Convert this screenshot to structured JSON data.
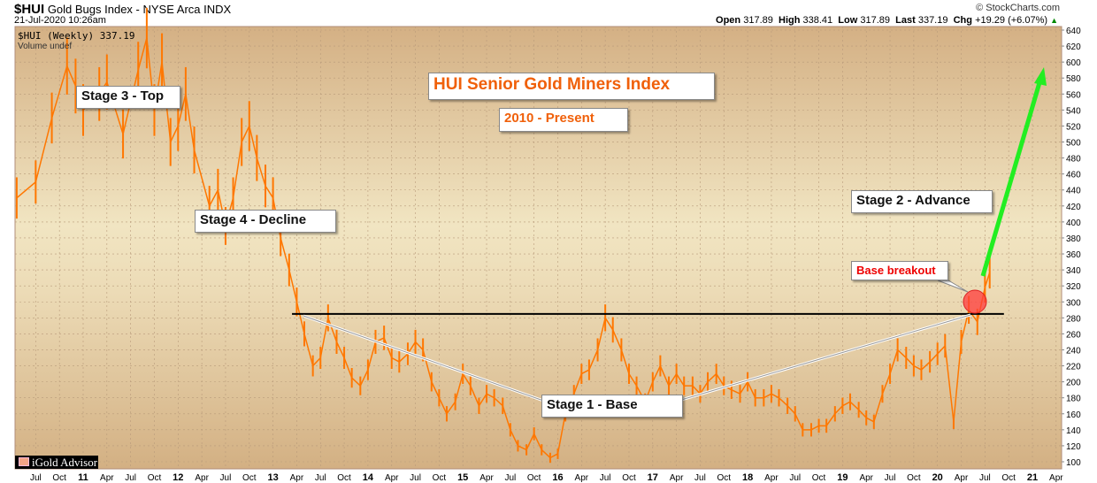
{
  "header": {
    "symbol": "$HUI",
    "name": "Gold Bugs Index - NYSE Arca",
    "exchange": "INDX",
    "datetime": "21-Jul-2020 10:26am",
    "brand": "© StockCharts.com",
    "open_label": "Open",
    "open": "317.89",
    "high_label": "High",
    "high": "338.41",
    "low_label": "Low",
    "low": "317.89",
    "last_label": "Last",
    "last": "337.19",
    "chg_label": "Chg",
    "chg": "+19.29 (+6.07%)"
  },
  "legend": {
    "series": "$HUI (Weekly) 337.19",
    "volume": "Volume undef"
  },
  "annotations": {
    "title": "HUI Senior Gold Miners Index",
    "subtitle": "2010 - Present",
    "stage3": "Stage 3 - Top",
    "stage4": "Stage 4 - Decline",
    "stage1": "Stage 1 - Base",
    "stage2": "Stage 2 - Advance",
    "breakout": "Base breakout",
    "logo": "iGold Advisor"
  },
  "colors": {
    "price": "#ff7700",
    "resistance": "#000000",
    "arrow": "#22ee22",
    "circle": "#ff3b3b",
    "accent": "#f0600a"
  },
  "chart_data": {
    "type": "bar",
    "title": "$HUI (Weekly)",
    "ylim": [
      100,
      640
    ],
    "yticks": [
      100,
      120,
      140,
      160,
      180,
      200,
      220,
      240,
      260,
      280,
      300,
      320,
      340,
      360,
      380,
      400,
      420,
      440,
      460,
      480,
      500,
      520,
      540,
      560,
      580,
      600,
      620,
      640
    ],
    "xticks": [
      {
        "t": 2010.5,
        "label": "Jul"
      },
      {
        "t": 2010.75,
        "label": "Oct"
      },
      {
        "t": 2011,
        "label": "11",
        "major": true
      },
      {
        "t": 2011.25,
        "label": "Apr"
      },
      {
        "t": 2011.5,
        "label": "Jul"
      },
      {
        "t": 2011.75,
        "label": "Oct"
      },
      {
        "t": 2012,
        "label": "12",
        "major": true
      },
      {
        "t": 2012.25,
        "label": "Apr"
      },
      {
        "t": 2012.5,
        "label": "Jul"
      },
      {
        "t": 2012.75,
        "label": "Oct"
      },
      {
        "t": 2013,
        "label": "13",
        "major": true
      },
      {
        "t": 2013.25,
        "label": "Apr"
      },
      {
        "t": 2013.5,
        "label": "Jul"
      },
      {
        "t": 2013.75,
        "label": "Oct"
      },
      {
        "t": 2014,
        "label": "14",
        "major": true
      },
      {
        "t": 2014.25,
        "label": "Apr"
      },
      {
        "t": 2014.5,
        "label": "Jul"
      },
      {
        "t": 2014.75,
        "label": "Oct"
      },
      {
        "t": 2015,
        "label": "15",
        "major": true
      },
      {
        "t": 2015.25,
        "label": "Apr"
      },
      {
        "t": 2015.5,
        "label": "Jul"
      },
      {
        "t": 2015.75,
        "label": "Oct"
      },
      {
        "t": 2016,
        "label": "16",
        "major": true
      },
      {
        "t": 2016.25,
        "label": "Apr"
      },
      {
        "t": 2016.5,
        "label": "Jul"
      },
      {
        "t": 2016.75,
        "label": "Oct"
      },
      {
        "t": 2017,
        "label": "17",
        "major": true
      },
      {
        "t": 2017.25,
        "label": "Apr"
      },
      {
        "t": 2017.5,
        "label": "Jul"
      },
      {
        "t": 2017.75,
        "label": "Oct"
      },
      {
        "t": 2018,
        "label": "18",
        "major": true
      },
      {
        "t": 2018.25,
        "label": "Apr"
      },
      {
        "t": 2018.5,
        "label": "Jul"
      },
      {
        "t": 2018.75,
        "label": "Oct"
      },
      {
        "t": 2019,
        "label": "19",
        "major": true
      },
      {
        "t": 2019.25,
        "label": "Apr"
      },
      {
        "t": 2019.5,
        "label": "Jul"
      },
      {
        "t": 2019.75,
        "label": "Oct"
      },
      {
        "t": 2020,
        "label": "20",
        "major": true
      },
      {
        "t": 2020.25,
        "label": "Apr"
      },
      {
        "t": 2020.5,
        "label": "Jul"
      },
      {
        "t": 2020.75,
        "label": "Oct"
      },
      {
        "t": 2021,
        "label": "21",
        "major": true
      },
      {
        "t": 2021.25,
        "label": "Apr"
      }
    ],
    "resistance": 285,
    "x": [
      2010.3,
      2010.5,
      2010.67,
      2010.83,
      2010.92,
      2011.0,
      2011.17,
      2011.25,
      2011.42,
      2011.58,
      2011.67,
      2011.75,
      2011.83,
      2011.92,
      2012.0,
      2012.08,
      2012.17,
      2012.33,
      2012.42,
      2012.5,
      2012.58,
      2012.67,
      2012.75,
      2012.83,
      2012.92,
      2013.0,
      2013.08,
      2013.17,
      2013.25,
      2013.33,
      2013.42,
      2013.5,
      2013.58,
      2013.67,
      2013.75,
      2013.83,
      2013.92,
      2014.0,
      2014.08,
      2014.17,
      2014.25,
      2014.33,
      2014.42,
      2014.5,
      2014.58,
      2014.67,
      2014.75,
      2014.83,
      2014.92,
      2015.0,
      2015.08,
      2015.17,
      2015.25,
      2015.33,
      2015.42,
      2015.5,
      2015.58,
      2015.67,
      2015.75,
      2015.83,
      2015.92,
      2016.0,
      2016.08,
      2016.17,
      2016.25,
      2016.33,
      2016.42,
      2016.5,
      2016.58,
      2016.67,
      2016.75,
      2016.83,
      2016.92,
      2017.0,
      2017.08,
      2017.17,
      2017.25,
      2017.33,
      2017.42,
      2017.5,
      2017.58,
      2017.67,
      2017.75,
      2017.83,
      2017.92,
      2018.0,
      2018.08,
      2018.17,
      2018.25,
      2018.33,
      2018.42,
      2018.5,
      2018.58,
      2018.67,
      2018.75,
      2018.83,
      2018.92,
      2019.0,
      2019.08,
      2019.17,
      2019.25,
      2019.33,
      2019.42,
      2019.5,
      2019.58,
      2019.67,
      2019.75,
      2019.83,
      2019.92,
      2020.0,
      2020.08,
      2020.17,
      2020.25,
      2020.33,
      2020.42,
      2020.5,
      2020.55
    ],
    "values": [
      430,
      450,
      530,
      595,
      570,
      540,
      560,
      575,
      510,
      590,
      630,
      540,
      600,
      500,
      520,
      560,
      490,
      420,
      440,
      395,
      430,
      500,
      520,
      480,
      445,
      430,
      380,
      340,
      300,
      260,
      220,
      230,
      280,
      250,
      230,
      205,
      195,
      215,
      250,
      255,
      230,
      225,
      235,
      250,
      240,
      200,
      180,
      160,
      175,
      210,
      195,
      170,
      185,
      180,
      170,
      140,
      120,
      115,
      135,
      115,
      105,
      110,
      160,
      185,
      210,
      215,
      240,
      280,
      265,
      240,
      210,
      195,
      175,
      200,
      220,
      195,
      210,
      195,
      195,
      185,
      200,
      210,
      195,
      190,
      185,
      200,
      180,
      180,
      185,
      180,
      170,
      160,
      140,
      140,
      145,
      145,
      160,
      170,
      175,
      165,
      155,
      150,
      185,
      210,
      240,
      230,
      220,
      215,
      225,
      235,
      245,
      150,
      250,
      290,
      275,
      318,
      337
    ]
  }
}
